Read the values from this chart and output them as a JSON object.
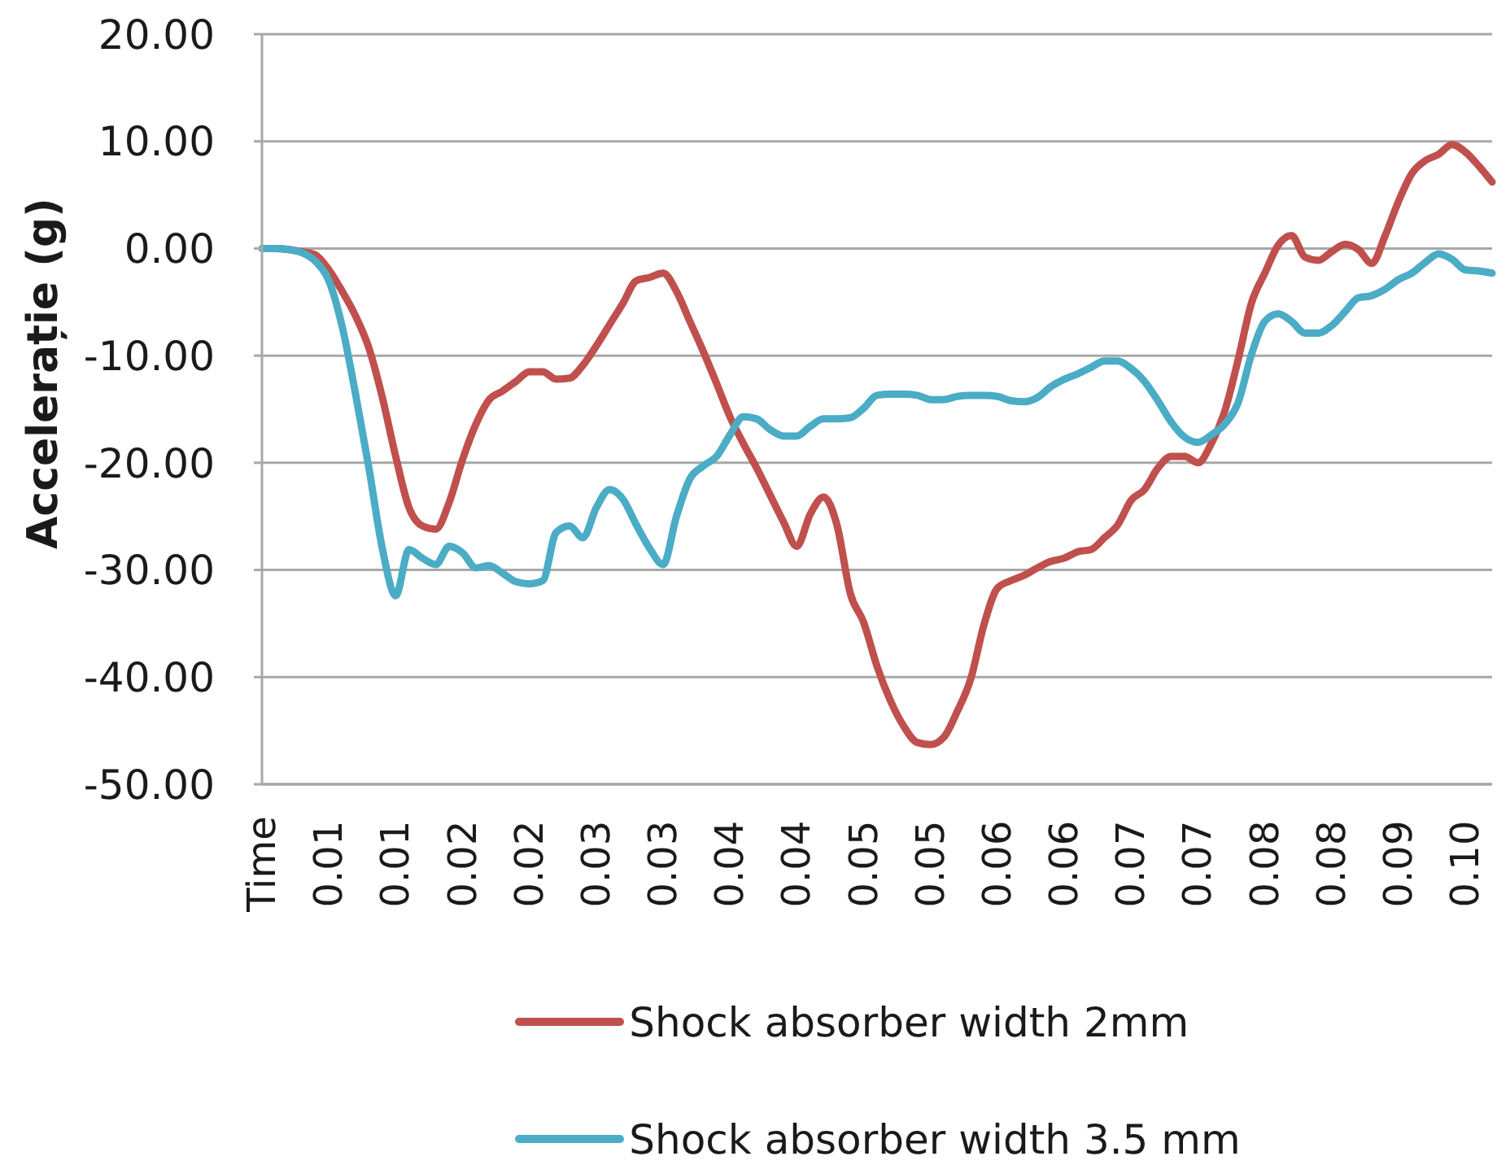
{
  "chart_data": {
    "type": "line",
    "ylabel": "Accelerație (g)",
    "categories": [
      "Time",
      null,
      null,
      null,
      null,
      "0.01",
      null,
      null,
      null,
      null,
      "0.01",
      null,
      null,
      null,
      null,
      "0.02",
      null,
      null,
      null,
      null,
      "0.02",
      null,
      null,
      null,
      null,
      "0.03",
      null,
      null,
      null,
      null,
      "0.03",
      null,
      null,
      null,
      null,
      "0.04",
      null,
      null,
      null,
      null,
      "0.04",
      null,
      null,
      null,
      null,
      "0.05",
      null,
      null,
      null,
      null,
      "0.05",
      null,
      null,
      null,
      null,
      "0.06",
      null,
      null,
      null,
      null,
      "0.06",
      null,
      null,
      null,
      null,
      "0.07",
      null,
      null,
      null,
      null,
      "0.07",
      null,
      null,
      null,
      null,
      "0.08",
      null,
      null,
      null,
      null,
      "0.08",
      null,
      null,
      null,
      null,
      "0.09",
      null,
      null,
      null,
      null,
      "0.10",
      null,
      null
    ],
    "series": [
      {
        "name": "Shock absorber width 2mm",
        "color": "#c0504d",
        "values": [
          0,
          0,
          -0.1,
          -0.3,
          -0.6,
          -2.0,
          -4.0,
          -6.3,
          -9.3,
          -13.9,
          -19.4,
          -24.2,
          -25.9,
          -26.2,
          -23.7,
          -19.7,
          -16.4,
          -14.1,
          -13.3,
          -12.4,
          -11.5,
          -11.5,
          -12.2,
          -12.1,
          -10.9,
          -9.1,
          -7.1,
          -5.1,
          -3.0,
          -2.7,
          -2.3,
          -4.0,
          -6.8,
          -9.6,
          -12.6,
          -15.7,
          -18.2,
          -20.5,
          -23.0,
          -25.5,
          -27.8,
          -24.8,
          -23.2,
          -25.8,
          -32.2,
          -34.9,
          -39.0,
          -42.2,
          -44.6,
          -46.1,
          -46.3,
          -45.6,
          -43.2,
          -40.2,
          -35.1,
          -31.7,
          -31.0,
          -30.5,
          -29.8,
          -29.2,
          -28.9,
          -28.3,
          -28.1,
          -27.0,
          -25.8,
          -23.5,
          -22.5,
          -20.5,
          -19.4,
          -19.4,
          -20.0,
          -18.2,
          -15.2,
          -10.4,
          -5.1,
          -2.3,
          0.3,
          1.2,
          -0.8,
          -1.1,
          -0.3,
          0.4,
          -0.1,
          -1.4,
          1.2,
          4.4,
          7.0,
          8.2,
          8.8,
          9.7,
          9.0,
          7.7,
          6.2
        ]
      },
      {
        "name": "Shock absorber width 3.5 mm",
        "color": "#4bacc6",
        "values": [
          0,
          0,
          -0.1,
          -0.4,
          -1.2,
          -3.0,
          -7.3,
          -13.6,
          -20.5,
          -28.0,
          -32.4,
          -28.1,
          -28.9,
          -29.5,
          -27.8,
          -28.4,
          -29.8,
          -29.6,
          -30.3,
          -31.1,
          -31.3,
          -31.0,
          -26.5,
          -25.9,
          -27.0,
          -24.2,
          -22.5,
          -23.4,
          -25.8,
          -28.0,
          -29.5,
          -25.0,
          -21.5,
          -20.3,
          -19.4,
          -17.4,
          -15.7,
          -15.9,
          -16.9,
          -17.5,
          -17.5,
          -16.6,
          -15.9,
          -15.9,
          -15.8,
          -14.9,
          -13.7,
          -13.6,
          -13.6,
          -13.7,
          -14.1,
          -14.1,
          -13.8,
          -13.7,
          -13.7,
          -13.8,
          -14.2,
          -14.3,
          -13.9,
          -12.9,
          -12.2,
          -11.7,
          -11.1,
          -10.5,
          -10.5,
          -11.2,
          -12.4,
          -14.2,
          -16.2,
          -17.6,
          -18.1,
          -17.4,
          -16.4,
          -14.4,
          -9.9,
          -6.8,
          -6.1,
          -6.8,
          -7.9,
          -7.9,
          -7.2,
          -5.9,
          -4.6,
          -4.4,
          -3.8,
          -2.9,
          -2.3,
          -1.3,
          -0.5,
          -1.0,
          -2.0,
          -2.1,
          -2.3
        ]
      }
    ],
    "ylim": [
      -50,
      20
    ],
    "yticks": [
      {
        "value": -50,
        "label": "-50.00"
      },
      {
        "value": -40,
        "label": "-40.00"
      },
      {
        "value": -30,
        "label": "-30.00"
      },
      {
        "value": -20,
        "label": "-20.00"
      },
      {
        "value": -10,
        "label": "-10.00"
      },
      {
        "value": 0,
        "label": "0.00"
      },
      {
        "value": 10,
        "label": "10.00"
      },
      {
        "value": 20,
        "label": "20.00"
      }
    ],
    "grid": "y",
    "legend": "bottom"
  }
}
